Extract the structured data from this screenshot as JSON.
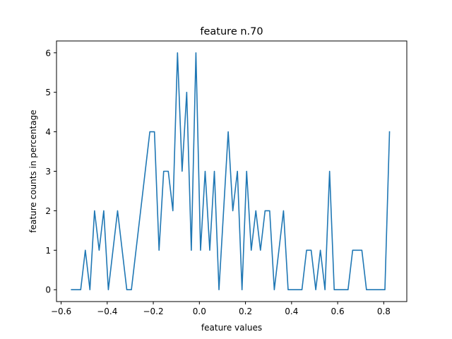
{
  "chart_data": {
    "type": "line",
    "title": "feature n.70",
    "xlabel": "feature values",
    "ylabel": "feature counts in percentage",
    "xlim": [
      -0.62,
      0.9
    ],
    "ylim": [
      -0.3,
      6.3
    ],
    "xticks": [
      -0.6,
      -0.4,
      -0.2,
      0.0,
      0.2,
      0.4,
      0.6,
      0.8
    ],
    "xtick_labels": [
      "−0.6",
      "−0.4",
      "−0.2",
      "0.0",
      "0.2",
      "0.4",
      "0.6",
      "0.8"
    ],
    "yticks": [
      0,
      1,
      2,
      3,
      4,
      5,
      6
    ],
    "ytick_labels": [
      "0",
      "1",
      "2",
      "3",
      "4",
      "5",
      "6"
    ],
    "grid": false,
    "series": [
      {
        "color": "#1f77b4",
        "x": [
          -0.555,
          -0.535,
          -0.515,
          -0.495,
          -0.475,
          -0.455,
          -0.435,
          -0.415,
          -0.395,
          -0.375,
          -0.355,
          -0.335,
          -0.315,
          -0.295,
          -0.275,
          -0.255,
          -0.235,
          -0.215,
          -0.195,
          -0.175,
          -0.155,
          -0.135,
          -0.115,
          -0.095,
          -0.075,
          -0.055,
          -0.035,
          -0.015,
          0.005,
          0.025,
          0.045,
          0.065,
          0.085,
          0.105,
          0.125,
          0.145,
          0.165,
          0.185,
          0.205,
          0.225,
          0.245,
          0.265,
          0.285,
          0.305,
          0.325,
          0.345,
          0.365,
          0.385,
          0.405,
          0.425,
          0.445,
          0.465,
          0.485,
          0.505,
          0.525,
          0.545,
          0.565,
          0.585,
          0.605,
          0.625,
          0.645,
          0.665,
          0.685,
          0.705,
          0.725,
          0.745,
          0.765,
          0.785,
          0.805,
          0.825
        ],
        "y": [
          0,
          0,
          0,
          1,
          0,
          2,
          1,
          2,
          0,
          1,
          2,
          1,
          0,
          0,
          1,
          2,
          3,
          4,
          4,
          1,
          3,
          3,
          2,
          6,
          3,
          5,
          1,
          6,
          1,
          3,
          1,
          3,
          0,
          2,
          4,
          2,
          3,
          0,
          3,
          1,
          2,
          1,
          2,
          2,
          0,
          1,
          2,
          0,
          0,
          0,
          0,
          1,
          1,
          0,
          1,
          0,
          3,
          0,
          0,
          0,
          0,
          1,
          1,
          1,
          0,
          0,
          0,
          0,
          0,
          4
        ]
      }
    ]
  }
}
